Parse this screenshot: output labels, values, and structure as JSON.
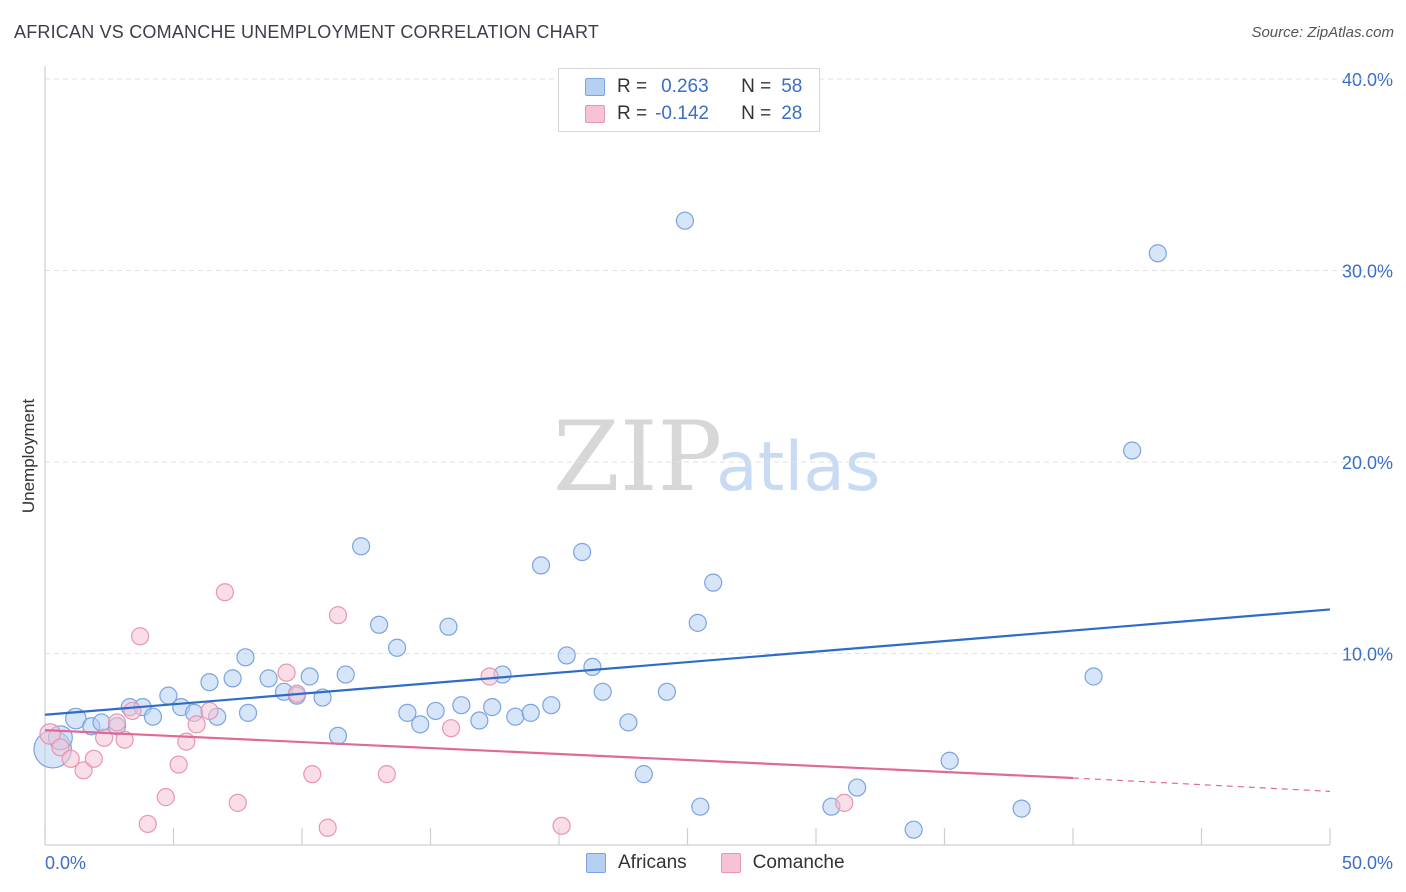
{
  "header": {
    "title": "AFRICAN VS COMANCHE UNEMPLOYMENT CORRELATION CHART",
    "source": "Source: ZipAtlas.com"
  },
  "legend": {
    "rows": [
      {
        "r_label": "R =",
        "r_value": "0.263",
        "n_label": "N =",
        "n_value": "58"
      },
      {
        "r_label": "R =",
        "r_value": "-0.142",
        "n_label": "N =",
        "n_value": "28"
      }
    ],
    "series_names": [
      "Africans",
      "Comanche"
    ]
  },
  "watermark": {
    "zip": "ZIP",
    "atlas": "atlas"
  },
  "colors": {
    "africans_fill": "#b7d0f2",
    "africans_stroke": "#7aa4e0",
    "africans_line": "#2f6cc8",
    "comanche_fill": "#f6c3d3",
    "comanche_stroke": "#e896b1",
    "comanche_line": "#e06a96",
    "axis_label": "#3a6fc4",
    "grid": "#e2e2e2"
  },
  "chart_data": {
    "type": "scatter",
    "ylabel": "Unemployment",
    "xlim": [
      0,
      50
    ],
    "ylim": [
      0,
      40
    ],
    "x_tick_labels": [
      "0.0%",
      "50.0%"
    ],
    "y_ticks": [
      10,
      20,
      30,
      40
    ],
    "y_tick_labels": [
      "10.0%",
      "20.0%",
      "30.0%",
      "40.0%"
    ],
    "grid": true,
    "legend_position": "top-center",
    "series": [
      {
        "name": "Africans",
        "trend": {
          "x": [
            0,
            50
          ],
          "y": [
            6.8,
            12.3
          ]
        },
        "points": [
          [
            0.3,
            5.0,
            22
          ],
          [
            0.6,
            5.6,
            14
          ],
          [
            1.2,
            6.6,
            12
          ],
          [
            1.8,
            6.2,
            10
          ],
          [
            2.2,
            6.4,
            10
          ],
          [
            2.8,
            6.2,
            10
          ],
          [
            3.3,
            7.2,
            10
          ],
          [
            3.8,
            7.2,
            10
          ],
          [
            4.2,
            6.7,
            10
          ],
          [
            4.8,
            7.8,
            10
          ],
          [
            5.3,
            7.2,
            10
          ],
          [
            5.8,
            6.9,
            10
          ],
          [
            6.4,
            8.5,
            10
          ],
          [
            6.7,
            6.7,
            10
          ],
          [
            7.3,
            8.7,
            10
          ],
          [
            7.8,
            9.8,
            10
          ],
          [
            7.9,
            6.9,
            10
          ],
          [
            8.7,
            8.7,
            10
          ],
          [
            9.3,
            8.0,
            10
          ],
          [
            9.8,
            7.8,
            10
          ],
          [
            10.3,
            8.8,
            10
          ],
          [
            10.8,
            7.7,
            10
          ],
          [
            11.4,
            5.7,
            10
          ],
          [
            11.7,
            8.9,
            10
          ],
          [
            12.3,
            15.6,
            10
          ],
          [
            13.0,
            11.5,
            10
          ],
          [
            13.7,
            10.3,
            10
          ],
          [
            14.1,
            6.9,
            10
          ],
          [
            14.6,
            6.3,
            10
          ],
          [
            15.2,
            7.0,
            10
          ],
          [
            15.7,
            11.4,
            10
          ],
          [
            16.2,
            7.3,
            10
          ],
          [
            16.9,
            6.5,
            10
          ],
          [
            17.4,
            7.2,
            10
          ],
          [
            17.8,
            8.9,
            10
          ],
          [
            18.3,
            6.7,
            10
          ],
          [
            18.9,
            6.9,
            10
          ],
          [
            19.3,
            14.6,
            10
          ],
          [
            19.7,
            7.3,
            10
          ],
          [
            20.3,
            9.9,
            10
          ],
          [
            20.9,
            15.3,
            10
          ],
          [
            21.3,
            9.3,
            10
          ],
          [
            21.7,
            8.0,
            10
          ],
          [
            22.7,
            6.4,
            10
          ],
          [
            23.3,
            3.7,
            10
          ],
          [
            24.2,
            8.0,
            10
          ],
          [
            24.9,
            32.6,
            10
          ],
          [
            25.4,
            11.6,
            10
          ],
          [
            25.5,
            2.0,
            10
          ],
          [
            26.0,
            13.7,
            10
          ],
          [
            30.6,
            2.0,
            10
          ],
          [
            31.6,
            3.0,
            10
          ],
          [
            33.8,
            0.8,
            10
          ],
          [
            35.2,
            4.4,
            10
          ],
          [
            38.0,
            1.9,
            10
          ],
          [
            40.8,
            8.8,
            10
          ],
          [
            42.3,
            20.6,
            10
          ],
          [
            43.3,
            30.9,
            10
          ]
        ]
      },
      {
        "name": "Comanche",
        "trend": {
          "x": [
            0,
            40
          ],
          "y": [
            6.0,
            3.5
          ]
        },
        "trend_dashed": {
          "x": [
            40,
            50
          ],
          "y": [
            3.5,
            2.8
          ]
        },
        "points": [
          [
            0.2,
            5.8,
            12
          ],
          [
            0.6,
            5.1,
            10
          ],
          [
            1.0,
            4.5,
            10
          ],
          [
            1.5,
            3.9,
            10
          ],
          [
            1.9,
            4.5,
            10
          ],
          [
            2.3,
            5.6,
            10
          ],
          [
            2.8,
            6.4,
            10
          ],
          [
            3.1,
            5.5,
            10
          ],
          [
            3.4,
            7.0,
            10
          ],
          [
            3.7,
            10.9,
            10
          ],
          [
            4.0,
            1.1,
            10
          ],
          [
            4.7,
            2.5,
            10
          ],
          [
            5.2,
            4.2,
            10
          ],
          [
            5.5,
            5.4,
            10
          ],
          [
            5.9,
            6.3,
            10
          ],
          [
            6.4,
            7.0,
            10
          ],
          [
            7.0,
            13.2,
            10
          ],
          [
            7.5,
            2.2,
            10
          ],
          [
            9.4,
            9.0,
            10
          ],
          [
            9.8,
            7.9,
            10
          ],
          [
            10.4,
            3.7,
            10
          ],
          [
            11.0,
            0.9,
            10
          ],
          [
            11.4,
            12.0,
            10
          ],
          [
            13.3,
            3.7,
            10
          ],
          [
            15.8,
            6.1,
            10
          ],
          [
            17.3,
            8.8,
            10
          ],
          [
            20.1,
            1.0,
            10
          ],
          [
            31.1,
            2.2,
            10
          ]
        ]
      }
    ]
  }
}
